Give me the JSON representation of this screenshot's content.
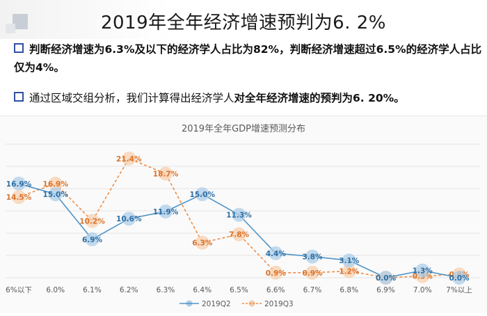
{
  "header": {
    "title": "2019年全年经济增速预判为6. 2%"
  },
  "bullets": [
    {
      "text": "判断经济增速为6.3%及以下的经济学人占比为82%，判断经济增速超过6.5%的经济学人占比仅为4%。"
    },
    {
      "text_plain": "通过区域交组分析，我们计算得出经济学人",
      "text_bold": "对全年经济增速的预判为6. 20%。"
    }
  ],
  "chart_data": {
    "type": "line",
    "title": "2019年全年GDP增速预测分布",
    "categories": [
      "6%以下",
      "6.0%",
      "6.1%",
      "6.2%",
      "6.3%",
      "6.4%",
      "6.5%",
      "6.6%",
      "6.7%",
      "6.8%",
      "6.9%",
      "7.0%",
      "7%以上"
    ],
    "series": [
      {
        "name": "2019Q2",
        "values": [
          16.9,
          15.0,
          6.9,
          10.6,
          11.9,
          15.0,
          11.3,
          4.4,
          3.8,
          3.1,
          0.0,
          1.3,
          0.0
        ],
        "labels": [
          "16.9%",
          "15.0%",
          "6.9%",
          "10.6%",
          "11.9%",
          "15.0%",
          "11.3%",
          "4.4%",
          "3.8%",
          "3.1%",
          "0.0%",
          "1.3%",
          "0.0%"
        ],
        "color": "#4f94c8",
        "style": "solid"
      },
      {
        "name": "2019Q3",
        "values": [
          14.5,
          16.9,
          10.2,
          21.4,
          18.7,
          6.3,
          7.8,
          0.9,
          0.9,
          1.2,
          0.0,
          0.3,
          0.6
        ],
        "labels": [
          "14.5%",
          "16.9%",
          "10.2%",
          "21.4%",
          "18.7%",
          "6.3%",
          "7.8%",
          "0.9%",
          "0.9%",
          "1.2%",
          "0.0%",
          "0.3%",
          "0.6%"
        ],
        "color": "#ef8d45",
        "style": "dashed"
      }
    ],
    "ylim": [
      0,
      24
    ],
    "grid": true,
    "legend_position": "bottom"
  }
}
